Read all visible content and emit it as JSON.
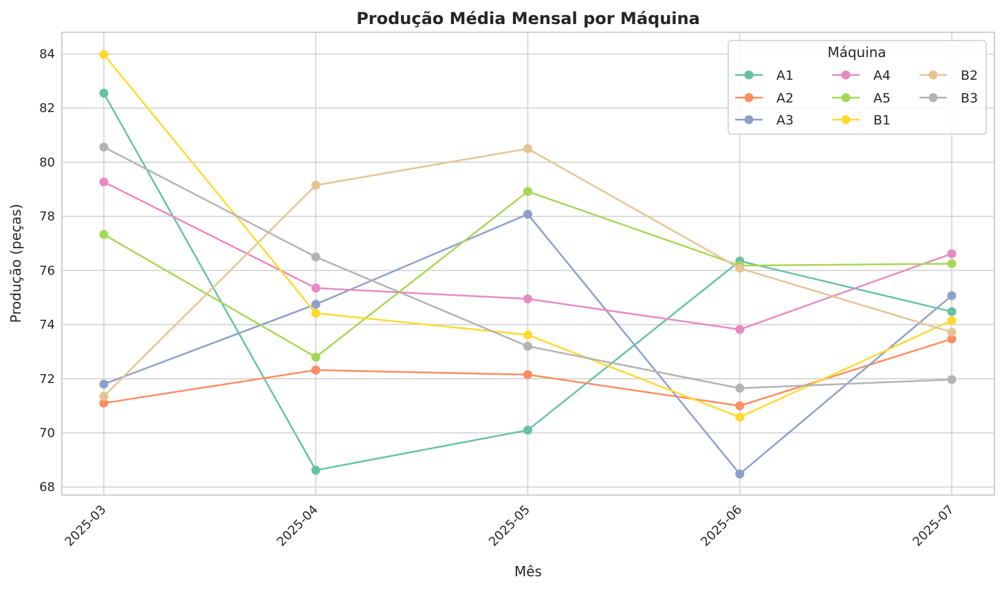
{
  "chart_data": {
    "type": "line",
    "title": "Produção Média Mensal por Máquina",
    "xlabel": "Mês",
    "ylabel": "Produção (peças)",
    "categories": [
      "2025-03",
      "2025-04",
      "2025-05",
      "2025-06",
      "2025-07"
    ],
    "ylim": [
      67.7,
      84.8
    ],
    "yticks": [
      68,
      70,
      72,
      74,
      76,
      78,
      80,
      82,
      84
    ],
    "grid": true,
    "legend": {
      "title": "Máquina",
      "placement": "top-right",
      "columns": 3
    },
    "series": [
      {
        "name": "A1",
        "color": "#66c2a5",
        "values": [
          82.55,
          68.62,
          70.1,
          76.35,
          74.48
        ]
      },
      {
        "name": "A2",
        "color": "#fc8d62",
        "values": [
          71.1,
          72.32,
          72.15,
          71.0,
          73.47
        ]
      },
      {
        "name": "A3",
        "color": "#8da0cb",
        "values": [
          71.8,
          74.75,
          78.08,
          68.48,
          75.07
        ]
      },
      {
        "name": "A4",
        "color": "#e78ac3",
        "values": [
          79.27,
          75.35,
          74.95,
          73.82,
          76.62
        ]
      },
      {
        "name": "A5",
        "color": "#a6d854",
        "values": [
          77.33,
          72.8,
          78.92,
          76.18,
          76.25
        ]
      },
      {
        "name": "B1",
        "color": "#ffd92f",
        "values": [
          83.98,
          74.42,
          73.62,
          70.58,
          74.15
        ]
      },
      {
        "name": "B2",
        "color": "#e5c494",
        "values": [
          71.35,
          79.15,
          80.5,
          76.08,
          73.72
        ]
      },
      {
        "name": "B3",
        "color": "#b3b3b3",
        "values": [
          80.56,
          76.5,
          73.2,
          71.65,
          71.97
        ]
      }
    ]
  }
}
